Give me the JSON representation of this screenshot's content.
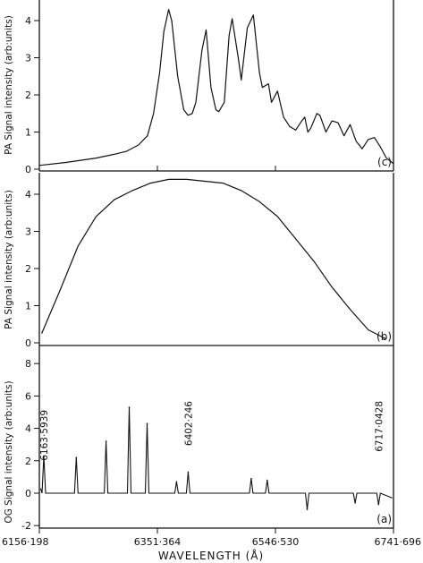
{
  "chart_data": [
    {
      "panel": "(c)",
      "type": "line",
      "ylabel": "PA Signal intensity (arb:units)",
      "ylim": [
        0,
        4.4
      ],
      "yticks": [
        0,
        1,
        2,
        3,
        4
      ],
      "xlim": [
        6156.198,
        6741.696
      ],
      "series": [
        {
          "x": [
            6156.198,
            6200,
            6250,
            6280,
            6300,
            6320,
            6335,
            6345,
            6355,
            6362,
            6370,
            6375,
            6385,
            6395,
            6402,
            6409,
            6415,
            6425,
            6432,
            6440,
            6448,
            6453,
            6462,
            6470,
            6475,
            6485,
            6490,
            6500,
            6510,
            6520,
            6525,
            6535,
            6540,
            6550,
            6560,
            6570,
            6580,
            6590,
            6595,
            6600,
            6605,
            6615,
            6620,
            6630,
            6640,
            6650,
            6660,
            6670,
            6680,
            6690,
            6700,
            6710,
            6720,
            6730,
            6741.696
          ],
          "y": [
            0.1,
            0.18,
            0.3,
            0.4,
            0.48,
            0.65,
            0.9,
            1.5,
            2.6,
            3.7,
            4.3,
            4.0,
            2.5,
            1.6,
            1.45,
            1.5,
            1.8,
            3.2,
            3.75,
            2.2,
            1.6,
            1.55,
            1.8,
            3.6,
            4.05,
            3.0,
            2.4,
            3.8,
            4.15,
            2.6,
            2.2,
            2.3,
            1.8,
            2.1,
            1.4,
            1.15,
            1.05,
            1.3,
            1.4,
            1.0,
            1.1,
            1.5,
            1.45,
            1.0,
            1.3,
            1.25,
            0.9,
            1.2,
            0.75,
            0.55,
            0.8,
            0.85,
            0.6,
            0.3,
            0.15
          ]
        }
      ]
    },
    {
      "panel": "(b)",
      "type": "line",
      "ylabel": "PA Signal intensity (arb:units)",
      "ylim": [
        0,
        4.4
      ],
      "yticks": [
        0,
        1,
        2,
        3,
        4
      ],
      "xlim": [
        6156.198,
        6741.696
      ],
      "series": [
        {
          "x": [
            6160,
            6190,
            6220,
            6250,
            6280,
            6310,
            6340,
            6370,
            6400,
            6430,
            6460,
            6490,
            6520,
            6550,
            6580,
            6610,
            6640,
            6670,
            6700,
            6730
          ],
          "y": [
            0.25,
            1.4,
            2.6,
            3.4,
            3.85,
            4.1,
            4.3,
            4.4,
            4.4,
            4.35,
            4.3,
            4.1,
            3.8,
            3.4,
            2.8,
            2.2,
            1.5,
            0.9,
            0.35,
            0.1
          ]
        }
      ]
    },
    {
      "panel": "(a)",
      "type": "line",
      "ylabel": "OG Signal intensity (arb:units)",
      "ylim": [
        -2,
        8.6
      ],
      "yticks": [
        -2,
        0,
        2,
        4,
        6,
        8
      ],
      "xlabel": "WAVELENGTH (Å)",
      "xticks": [
        6156.198,
        6351.364,
        6546.53,
        6741.696
      ],
      "xtick_labels": [
        "6156·198",
        "6351·364",
        "6546·530",
        "6741·696"
      ],
      "baseline": 0,
      "peaks": [
        {
          "x": 6163.594,
          "y": 2.3
        },
        {
          "x": 6217.3,
          "y": 2.2
        },
        {
          "x": 6266.5,
          "y": 3.2
        },
        {
          "x": 6304.8,
          "y": 5.3
        },
        {
          "x": 6334.4,
          "y": 4.3
        },
        {
          "x": 6383.0,
          "y": 0.7
        },
        {
          "x": 6402.246,
          "y": 1.3
        },
        {
          "x": 6506.5,
          "y": 0.9
        },
        {
          "x": 6532.9,
          "y": 0.8
        },
        {
          "x": 6599.0,
          "y": -1.0
        },
        {
          "x": 6678.3,
          "y": -0.6
        },
        {
          "x": 6717.043,
          "y": -0.7
        }
      ],
      "annotations": [
        "6163·5939",
        "6402·246",
        "6717·0428"
      ]
    }
  ],
  "panel_labels": {
    "c": "(c)",
    "b": "(b)",
    "a": "(a)"
  }
}
